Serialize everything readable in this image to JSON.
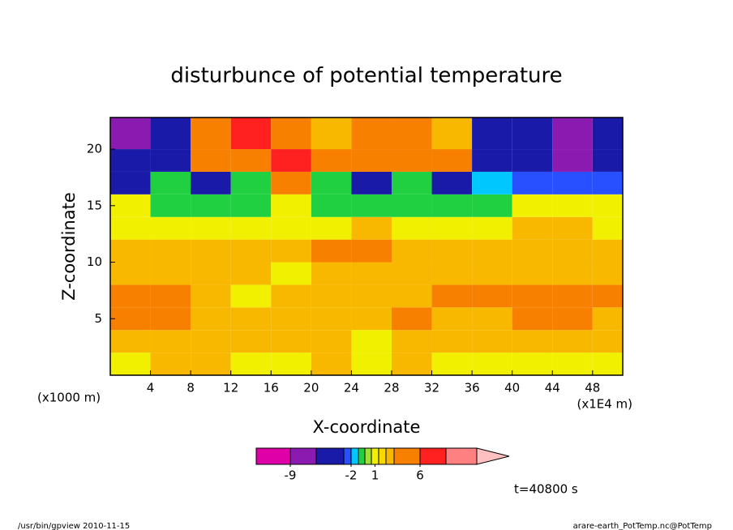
{
  "chart_data": {
    "type": "contour",
    "title": "disturbunce of potential temperature",
    "x_label": "X-coordinate",
    "y_label": "Z-coordinate",
    "x_unit_left": "(x1000 m)",
    "x_unit_right": "(x1E4 m)",
    "time_label": "t=40800 s",
    "footer_left": "/usr/bin/gpview  2010-11-15",
    "footer_right": "arare-earth_PotTemp.nc@PotTemp",
    "xlim": [
      0,
      51
    ],
    "ylim": [
      0,
      22.8
    ],
    "xticks": [
      4,
      8,
      12,
      16,
      20,
      24,
      28,
      32,
      36,
      40,
      44,
      48
    ],
    "yticks": [
      5,
      10,
      15,
      20
    ],
    "x": [
      2,
      6,
      10,
      14,
      18,
      22,
      26,
      30,
      34,
      38,
      42,
      46,
      50
    ],
    "y": [
      1,
      3,
      5,
      7,
      9,
      11,
      13,
      15,
      17,
      19,
      21
    ],
    "z": [
      [
        1,
        2,
        2.5,
        1,
        1,
        2.5,
        1,
        2.5,
        1,
        1,
        1,
        1,
        1
      ],
      [
        2.5,
        2.5,
        2.5,
        2,
        2.5,
        2.5,
        1,
        2.5,
        2.5,
        2.5,
        2.5,
        2.5,
        2.5
      ],
      [
        4,
        4,
        2.5,
        2.5,
        2.5,
        2.5,
        2.5,
        4,
        2.5,
        2.5,
        4,
        4,
        2.5
      ],
      [
        4,
        4,
        2.5,
        1,
        2.5,
        2.5,
        2.5,
        2.5,
        4,
        4,
        4,
        4,
        4
      ],
      [
        2.5,
        2.5,
        2.5,
        2.5,
        1,
        2.5,
        2.5,
        2.5,
        2.5,
        2.5,
        2.5,
        2.5,
        2.5
      ],
      [
        2.5,
        2.5,
        2.5,
        2.5,
        2.5,
        4,
        4,
        2.5,
        2.5,
        2.5,
        2.5,
        2.5,
        2.5
      ],
      [
        1,
        1,
        1,
        1,
        1,
        1,
        2.5,
        1,
        1,
        1,
        2.5,
        2.5,
        1
      ],
      [
        1,
        -1.2,
        -1.2,
        -1.2,
        1,
        -1.2,
        -1.2,
        -1.2,
        -1.2,
        -1.2,
        1,
        1,
        1
      ],
      [
        -4,
        -1.2,
        -4,
        -1.2,
        4,
        -1.2,
        -4,
        -1.2,
        -4,
        -1.7,
        -2.5,
        -2.5,
        -2.5
      ],
      [
        -4,
        -4,
        4,
        4,
        7,
        4,
        4,
        4,
        4,
        -4,
        -4,
        -7,
        -4
      ],
      [
        -7,
        -4,
        4,
        7,
        4,
        2.5,
        4,
        4,
        2.5,
        -4,
        -4,
        -7,
        -4
      ]
    ],
    "levels": [
      -9,
      -6,
      -3,
      -2,
      -1.5,
      -1,
      0.5,
      1.5,
      2,
      3,
      6,
      9,
      12
    ],
    "colors": [
      "#e000a8",
      "#8a1ab0",
      "#1a1aa8",
      "#2850ff",
      "#00c8ff",
      "#20d040",
      "#a0e030",
      "#f0f000",
      "#f8d800",
      "#f8b800",
      "#f88000",
      "#ff2020",
      "#ff8080",
      "#ffc0c0"
    ],
    "colorbar_ticks": [
      -9,
      -2,
      1,
      6
    ]
  }
}
